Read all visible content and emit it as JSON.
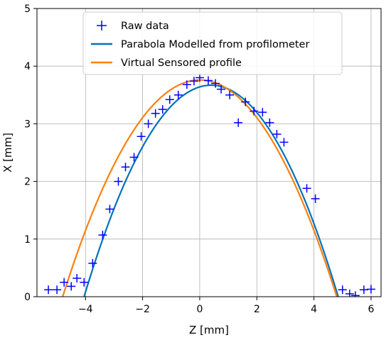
{
  "chart_data": {
    "type": "scatter",
    "xlabel": "Z [mm]",
    "ylabel": "X [mm]",
    "xlim": [
      -5.7,
      6.35
    ],
    "ylim": [
      0,
      5
    ],
    "xticks": [
      -4,
      -2,
      0,
      2,
      4,
      6
    ],
    "yticks": [
      0,
      1,
      2,
      3,
      4,
      5
    ],
    "xtick_labels": [
      "−4",
      "−2",
      "0",
      "2",
      "4",
      "6"
    ],
    "ytick_labels": [
      "0",
      "1",
      "2",
      "3",
      "4",
      "5"
    ],
    "grid": true,
    "legend_position": "top-center",
    "series": [
      {
        "name": "Raw data",
        "kind": "scatter",
        "marker": "plus",
        "color": "#0000ff",
        "x": [
          -5.3,
          -5.0,
          -4.75,
          -4.5,
          -4.3,
          -4.05,
          -3.75,
          -3.4,
          -3.15,
          -2.85,
          -2.6,
          -2.3,
          -2.05,
          -1.8,
          -1.55,
          -1.3,
          -1.05,
          -0.75,
          -0.45,
          -0.2,
          0.0,
          0.3,
          0.55,
          0.75,
          1.05,
          1.35,
          1.6,
          1.9,
          2.2,
          2.45,
          2.7,
          2.95,
          3.75,
          4.05,
          5.0,
          5.25,
          5.45,
          5.75,
          6.0
        ],
        "y": [
          0.12,
          0.12,
          0.25,
          0.18,
          0.32,
          0.25,
          0.58,
          1.07,
          1.52,
          2.0,
          2.25,
          2.42,
          2.78,
          3.0,
          3.18,
          3.25,
          3.42,
          3.5,
          3.68,
          3.74,
          3.8,
          3.75,
          3.7,
          3.6,
          3.5,
          3.02,
          3.38,
          3.22,
          3.2,
          3.02,
          2.82,
          2.68,
          1.88,
          1.7,
          0.12,
          0.05,
          0.02,
          0.12,
          0.13
        ]
      },
      {
        "name": "Parabola Modelled from profilometer",
        "kind": "curve",
        "color": "#0072bd",
        "vertex_z": 0.4,
        "vertex_x": 3.67,
        "roots": [
          -4.05,
          4.85
        ]
      },
      {
        "name": "Virtual Sensored profile",
        "kind": "curve",
        "color": "#ff7f0e",
        "vertex_z": 0.0,
        "vertex_x": 3.76,
        "roots": [
          -4.8,
          4.8
        ]
      }
    ]
  }
}
